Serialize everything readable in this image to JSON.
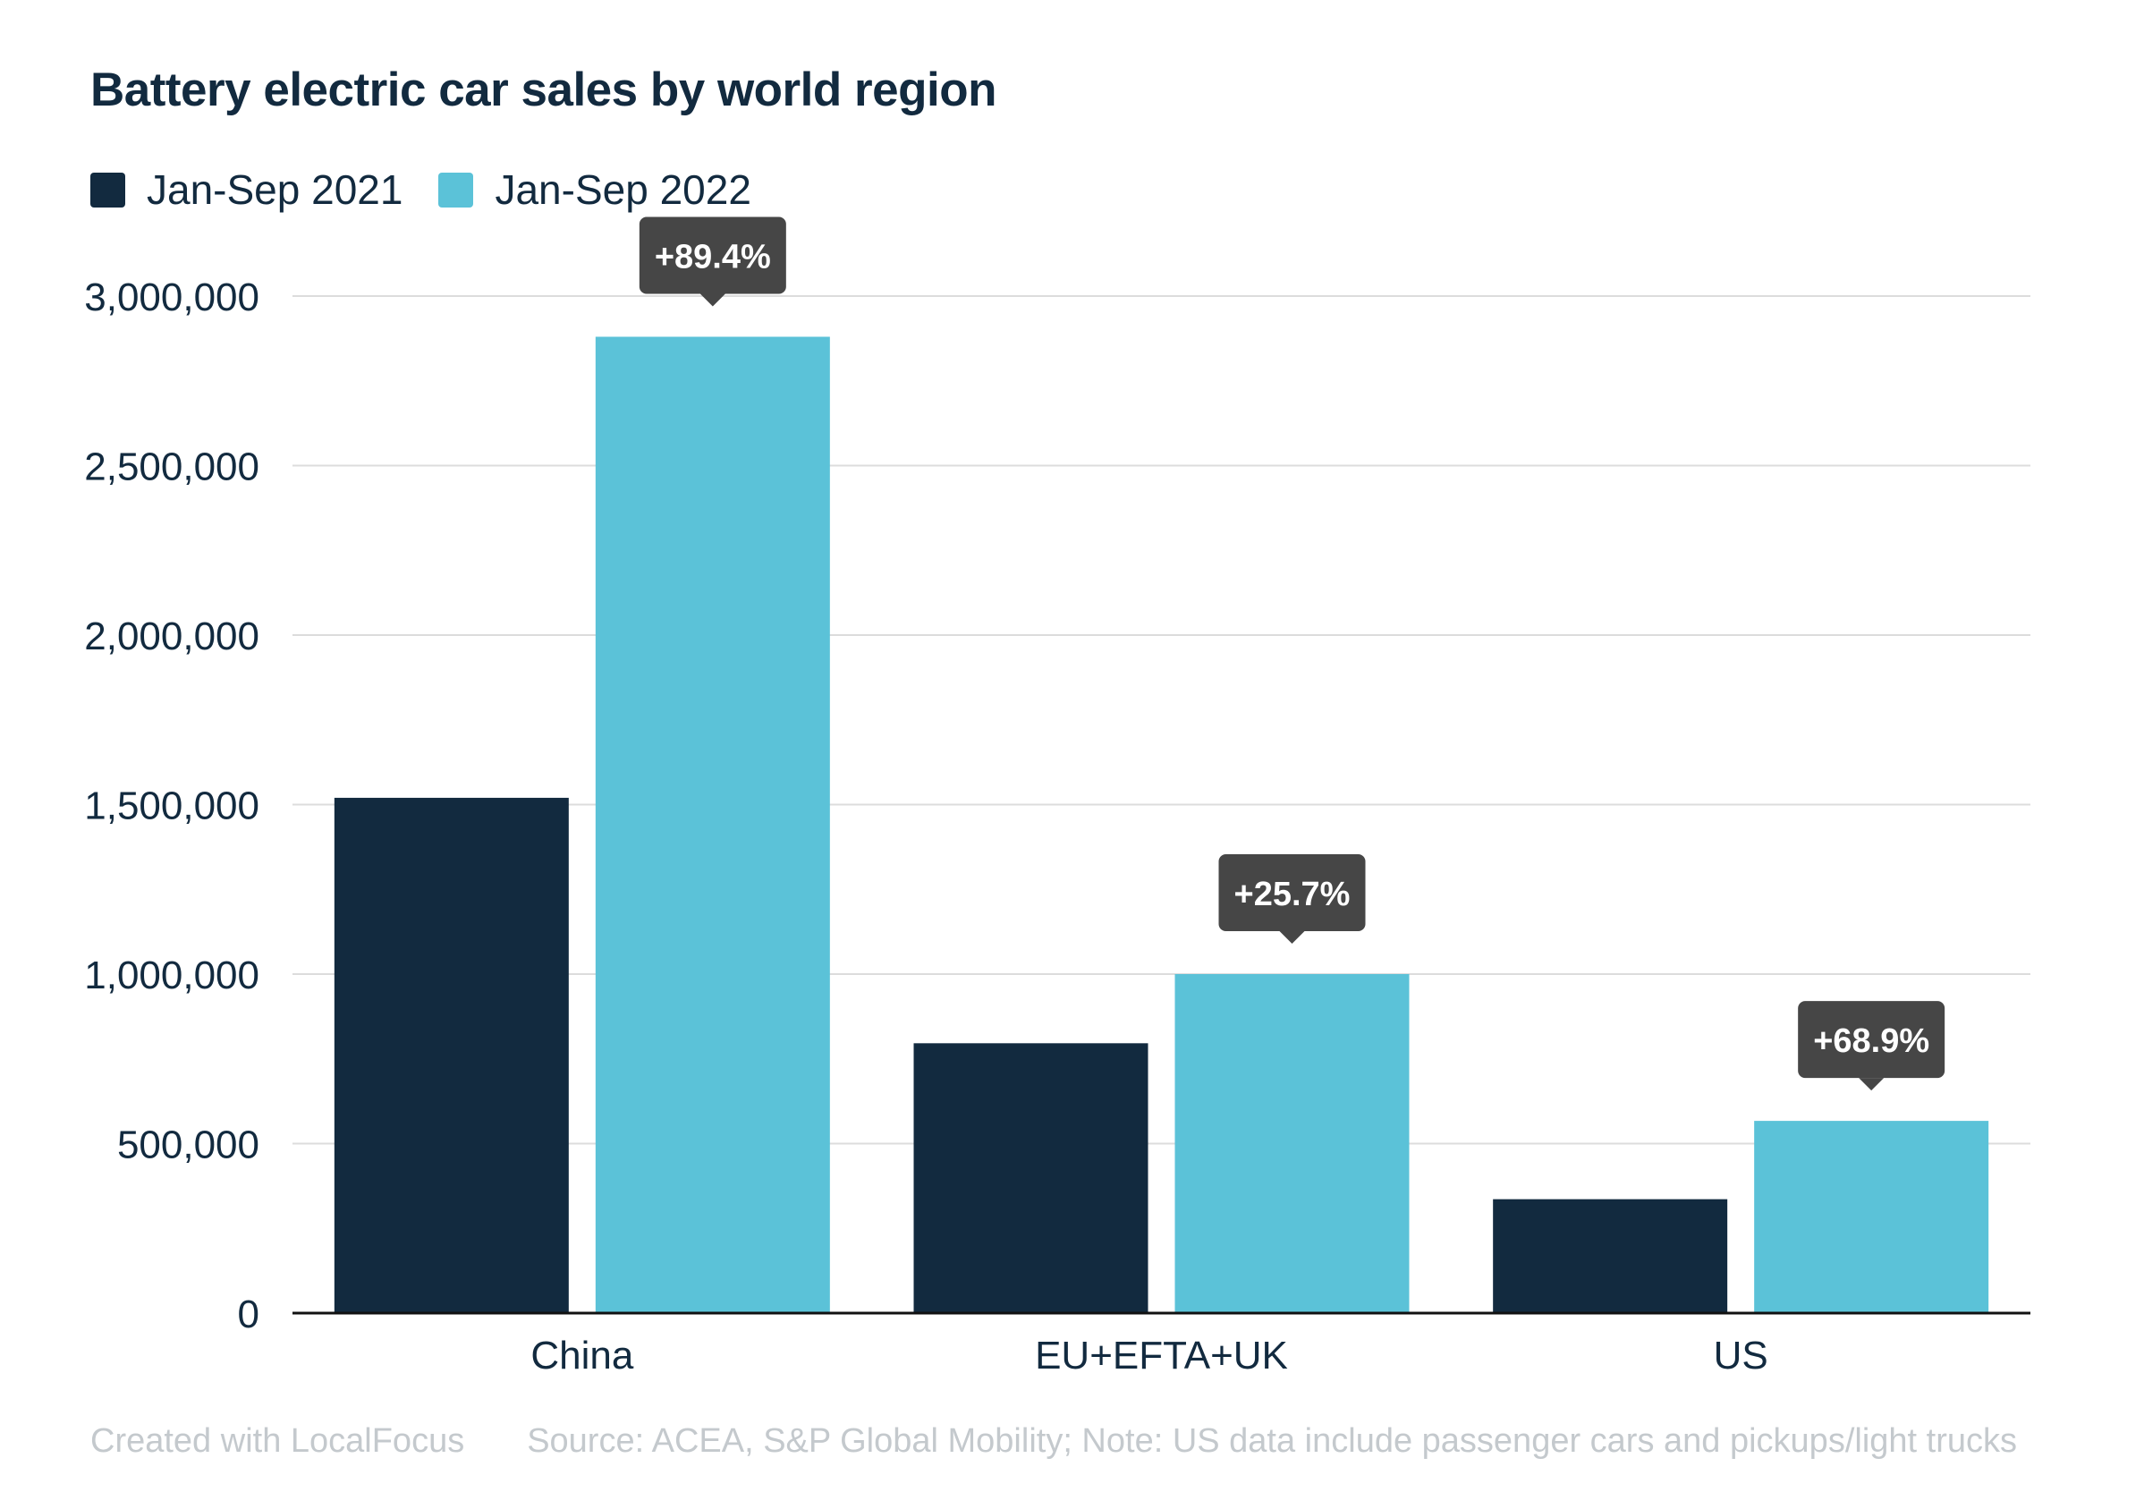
{
  "colors": {
    "series_2021": "#122a3f",
    "series_2022": "#5bc2d8",
    "gridline": "#dcdcdc",
    "axis": "#111111",
    "text": "#122a3f",
    "tooltip_bg": "#464646",
    "tooltip_text": "#ffffff",
    "footer": "#c4c9cd"
  },
  "chart_data": {
    "type": "bar",
    "title": "Battery electric car sales by world region",
    "categories": [
      "China",
      "EU+EFTA+UK",
      "US"
    ],
    "series": [
      {
        "name": "Jan-Sep 2021",
        "values": [
          1520000,
          796000,
          336000
        ]
      },
      {
        "name": "Jan-Sep 2022",
        "values": [
          2880000,
          1000000,
          567000
        ]
      }
    ],
    "ylim": [
      0,
      3000000
    ],
    "yticks": [
      0,
      500000,
      1000000,
      1500000,
      2000000,
      2500000,
      3000000
    ],
    "ytick_labels": [
      "0",
      "500,000",
      "1,000,000",
      "1,500,000",
      "2,000,000",
      "2,500,000",
      "3,000,000"
    ],
    "annotations": [
      "+89.4%",
      "+25.7%",
      "+68.9%"
    ],
    "grid": true,
    "legend_position": "top-left",
    "xlabel": "",
    "ylabel": ""
  },
  "footer": {
    "credit": "Created with LocalFocus",
    "source": "Source:  ACEA, S&P Global Mobility; Note: US data include passenger cars and pickups/light trucks"
  }
}
